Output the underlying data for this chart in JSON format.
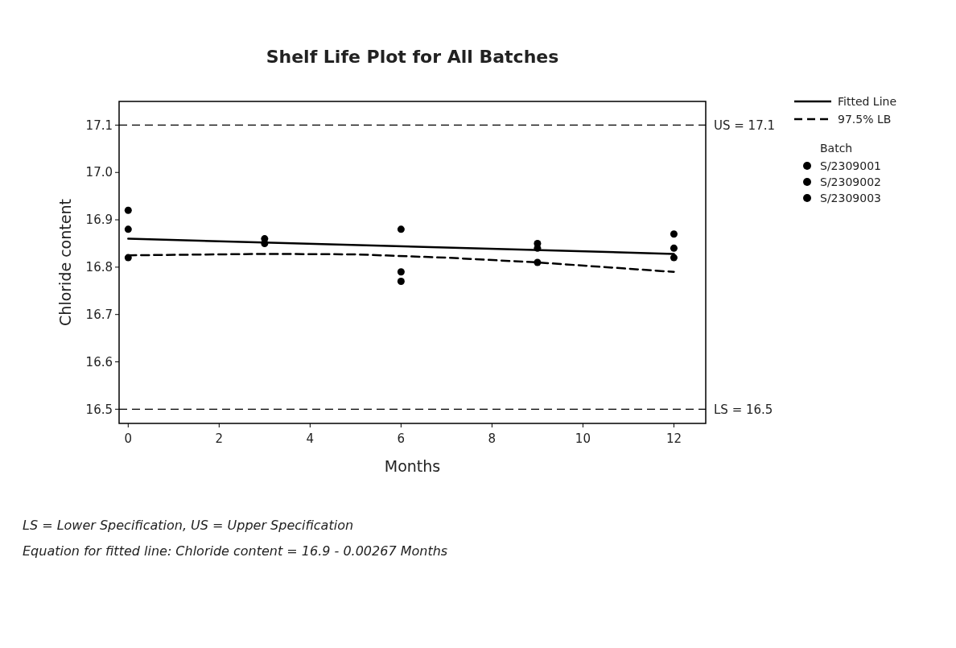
{
  "chart_data": {
    "type": "scatter",
    "title": "Shelf Life Plot for All Batches",
    "xlabel": "Months",
    "ylabel": "Chloride content",
    "legend_title": "Batch",
    "x": [
      0,
      3,
      6,
      9,
      12
    ],
    "series": [
      {
        "name": "Fitted Line",
        "type": "line",
        "color": "#000000",
        "line_style": "solid",
        "x": [
          0,
          12
        ],
        "values": [
          16.86,
          16.828
        ]
      },
      {
        "name": "97.5% LB",
        "type": "line",
        "color": "#000000",
        "line_style": "dashed",
        "x": [
          0,
          3,
          5,
          7,
          9,
          12
        ],
        "values": [
          16.825,
          16.828,
          16.827,
          16.82,
          16.81,
          16.79
        ]
      },
      {
        "name": "S/2309001",
        "color": "#000000",
        "marker": "circle",
        "values": [
          16.92,
          16.86,
          16.88,
          16.85,
          16.87
        ]
      },
      {
        "name": "S/2309002",
        "color": "#000000",
        "marker": "circle",
        "values": [
          16.88,
          16.85,
          16.79,
          16.84,
          16.84
        ]
      },
      {
        "name": "S/2309003",
        "color": "#000000",
        "marker": "circle",
        "values": [
          16.82,
          null,
          16.77,
          16.81,
          16.82
        ]
      }
    ],
    "xlim": [
      -0.2,
      12.7
    ],
    "xticks": [
      0,
      2,
      4,
      6,
      8,
      10,
      12
    ],
    "ylim": [
      16.47,
      17.15
    ],
    "yticks": [
      16.5,
      16.6,
      16.7,
      16.8,
      16.9,
      {
        "value": 17,
        "label": "17.0"
      },
      17.1
    ],
    "ref_lines": [
      {
        "axis": "y",
        "value": 17.1,
        "label": "US = 17.1",
        "color": "#000000",
        "line_style": "dashed"
      },
      {
        "axis": "y",
        "value": 16.5,
        "label": "LS = 16.5",
        "color": "#000000",
        "line_style": "dashed"
      }
    ],
    "grid": false,
    "legend": "top right",
    "annotations": [
      "LS = Lower Specification, US = Upper Specification",
      "Equation for fitted line: Chloride content = 16.9 - 0.00267 Months"
    ]
  }
}
